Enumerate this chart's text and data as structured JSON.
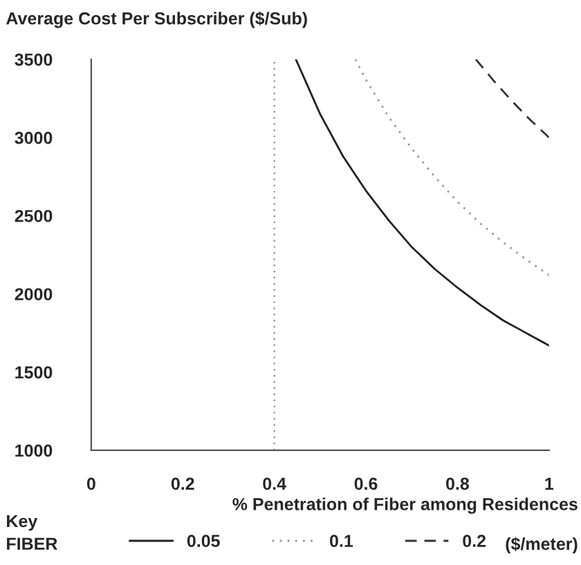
{
  "chart_data": {
    "type": "line",
    "ylabel": "Average Cost Per Subscriber ($/Sub)",
    "xlabel": "% Penetration of Fiber among Residences",
    "legend_title": "Key",
    "annotations": [
      "FIBER",
      "($/meter)"
    ],
    "xlim": [
      0,
      1
    ],
    "xticks": [
      0,
      0.2,
      0.4,
      0.6,
      0.8,
      1
    ],
    "ylim": [
      1000,
      3500
    ],
    "yticks": [
      1000,
      1500,
      2000,
      2500,
      3000,
      3500
    ],
    "grid": false,
    "legend": "bottom",
    "ref_lines": [
      {
        "axis": "x",
        "value": 0.4,
        "color": "#888888",
        "line_style": "dotted"
      }
    ],
    "series": [
      {
        "name": "0.05",
        "color": "#222222",
        "line_style": "solid",
        "x": [
          0.447,
          0.5,
          0.55,
          0.6,
          0.65,
          0.7,
          0.75,
          0.8,
          0.85,
          0.9,
          0.95,
          1.0
        ],
        "values": [
          3500,
          3150,
          2880,
          2660,
          2470,
          2300,
          2160,
          2040,
          1930,
          1830,
          1750,
          1670
        ]
      },
      {
        "name": "0.1",
        "color": "#999999",
        "line_style": "dotted",
        "x": [
          0.577,
          0.6,
          0.65,
          0.7,
          0.75,
          0.8,
          0.85,
          0.9,
          0.95,
          1.0
        ],
        "values": [
          3500,
          3370,
          3130,
          2930,
          2750,
          2590,
          2450,
          2330,
          2220,
          2120
        ]
      },
      {
        "name": "0.2",
        "color": "#333333",
        "line_style": "dashed",
        "x": [
          0.84,
          0.88,
          0.92,
          0.96,
          1.0
        ],
        "values": [
          3500,
          3360,
          3230,
          3110,
          3000
        ]
      }
    ]
  }
}
